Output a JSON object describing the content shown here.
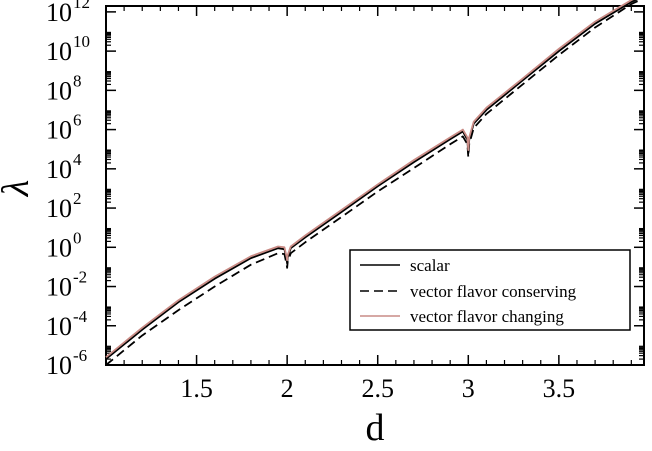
{
  "chart_data": {
    "type": "line",
    "xlabel": "d",
    "ylabel": "λ",
    "xlim": [
      1.0,
      3.97
    ],
    "ylim_log10": [
      -6,
      12.3
    ],
    "yscale": "log",
    "grid": false,
    "legend_position": "lower-right",
    "x_ticks": [
      {
        "value": 1.5,
        "label": "1.5"
      },
      {
        "value": 2,
        "label": "2"
      },
      {
        "value": 2.5,
        "label": "2.5"
      },
      {
        "value": 3,
        "label": "3"
      },
      {
        "value": 3.5,
        "label": "3.5"
      }
    ],
    "y_ticks": [
      {
        "exp": -6,
        "base": "10",
        "sup": "-6"
      },
      {
        "exp": -4,
        "base": "10",
        "sup": "-4"
      },
      {
        "exp": -2,
        "base": "10",
        "sup": "-2"
      },
      {
        "exp": 0,
        "base": "10",
        "sup": "0"
      },
      {
        "exp": 2,
        "base": "10",
        "sup": "2"
      },
      {
        "exp": 4,
        "base": "10",
        "sup": "4"
      },
      {
        "exp": 6,
        "base": "10",
        "sup": "6"
      },
      {
        "exp": 8,
        "base": "10",
        "sup": "8"
      },
      {
        "exp": 10,
        "base": "10",
        "sup": "10"
      },
      {
        "exp": 12,
        "base": "10",
        "sup": "12"
      }
    ],
    "series": [
      {
        "name": "scalar",
        "color": "#000000",
        "dash": "solid",
        "points": [
          [
            1.0,
            2e-06
          ],
          [
            1.2,
            6.3e-05
          ],
          [
            1.4,
            0.0016
          ],
          [
            1.6,
            0.025
          ],
          [
            1.8,
            0.28
          ],
          [
            1.95,
            0.9
          ],
          [
            1.985,
            0.8
          ],
          [
            1.998,
            0.2
          ],
          [
            2.0,
            0.15
          ],
          [
            2.003,
            0.3
          ],
          [
            2.02,
            0.9
          ],
          [
            2.1,
            3.2
          ],
          [
            2.3,
            63
          ],
          [
            2.5,
            1300
          ],
          [
            2.7,
            22000.0
          ],
          [
            2.9,
            320000.0
          ],
          [
            2.97,
            800000.0
          ],
          [
            2.995,
            300000.0
          ],
          [
            3.0,
            60000.0
          ],
          [
            3.005,
            300000.0
          ],
          [
            3.03,
            2000000.0
          ],
          [
            3.1,
            10000000.0
          ],
          [
            3.3,
            320000000.0
          ],
          [
            3.5,
            10000000000.0
          ],
          [
            3.7,
            250000000000.0
          ],
          [
            3.9,
            3200000000000.0
          ],
          [
            3.97,
            6300000000000.0
          ]
        ]
      },
      {
        "name": "vector flavor conserving",
        "color": "#000000",
        "dash": "dashed",
        "points": [
          [
            1.0,
            1e-06
          ],
          [
            1.2,
            3.2e-05
          ],
          [
            1.4,
            0.00063
          ],
          [
            1.6,
            0.01
          ],
          [
            1.8,
            0.13
          ],
          [
            1.95,
            0.5
          ],
          [
            1.985,
            0.45
          ],
          [
            1.998,
            0.12
          ],
          [
            2.0,
            0.09
          ],
          [
            2.003,
            0.18
          ],
          [
            2.02,
            0.5
          ],
          [
            2.1,
            1.8
          ],
          [
            2.3,
            35
          ],
          [
            2.5,
            700
          ],
          [
            2.7,
            11000.0
          ],
          [
            2.9,
            180000.0
          ],
          [
            2.97,
            450000.0
          ],
          [
            2.995,
            180000.0
          ],
          [
            3.0,
            40000.0
          ],
          [
            3.005,
            180000.0
          ],
          [
            3.03,
            1200000.0
          ],
          [
            3.1,
            6300000.0
          ],
          [
            3.3,
            200000000.0
          ],
          [
            3.5,
            6300000000.0
          ],
          [
            3.7,
            160000000000.0
          ],
          [
            3.9,
            2500000000000.0
          ],
          [
            3.97,
            5000000000000.0
          ]
        ]
      },
      {
        "name": "vector flavor changing",
        "color": "#c98b85",
        "dash": "solid",
        "points": [
          [
            1.0,
            2.5e-06
          ],
          [
            1.2,
            8e-05
          ],
          [
            1.4,
            0.002
          ],
          [
            1.6,
            0.032
          ],
          [
            1.8,
            0.35
          ],
          [
            1.95,
            1.1
          ],
          [
            1.985,
            1.0
          ],
          [
            1.998,
            0.3
          ],
          [
            2.0,
            0.22
          ],
          [
            2.003,
            0.4
          ],
          [
            2.02,
            1.1
          ],
          [
            2.1,
            4.0
          ],
          [
            2.3,
            80
          ],
          [
            2.5,
            1600
          ],
          [
            2.7,
            28000.0
          ],
          [
            2.9,
            400000.0
          ],
          [
            2.97,
            1000000.0
          ],
          [
            2.995,
            400000.0
          ],
          [
            3.0,
            90000.0
          ],
          [
            3.005,
            400000.0
          ],
          [
            3.03,
            2500000.0
          ],
          [
            3.1,
            13000000.0
          ],
          [
            3.3,
            400000000.0
          ],
          [
            3.5,
            13000000000.0
          ],
          [
            3.7,
            320000000000.0
          ],
          [
            3.9,
            4000000000000.0
          ],
          [
            3.97,
            7900000000000.0
          ]
        ]
      }
    ]
  }
}
